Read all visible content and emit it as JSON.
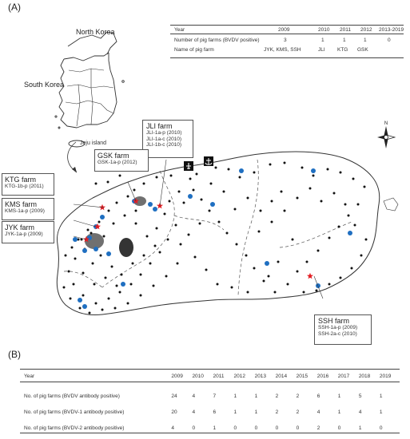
{
  "panel_a": {
    "label": "(A)",
    "map_labels": {
      "north_korea": "North Korea",
      "south_korea": "South Korea",
      "jeju_island": "Jeju island",
      "compass_n": "N"
    },
    "table": {
      "header": [
        "Year",
        "2009",
        "2010",
        "2011",
        "2012",
        "2013-2019"
      ],
      "rows": [
        {
          "label": "Number of pig farms (BVDV positive)",
          "values": [
            "3",
            "1",
            "1",
            "1",
            "0"
          ]
        },
        {
          "label": "Name of pig farm",
          "values": [
            "JYK, KMS, SSH",
            "JLI",
            "KTG",
            "GSK",
            ""
          ]
        }
      ]
    },
    "farms": [
      {
        "name": "JLI farm",
        "samples": [
          "JLI-1a-p (2010)",
          "JLI-1a-c (2010)",
          "JLI-1b-c (2010)"
        ]
      },
      {
        "name": "GSK farm",
        "samples": [
          "GSK-1a-p (2012)"
        ]
      },
      {
        "name": "KTG farm",
        "samples": [
          "KTG-1b-p (2011)"
        ]
      },
      {
        "name": "KMS farm",
        "samples": [
          "KMS-1a-p (2009)"
        ]
      },
      {
        "name": "JYK farm",
        "samples": [
          "JYK-1a-p (2009)"
        ]
      },
      {
        "name": "SSH farm",
        "samples": [
          "SSH-1a-p (2009)",
          "SSH-2a-c (2010)"
        ]
      }
    ],
    "colors": {
      "star": "#e31e24",
      "blue_dot": "#1f6fc1",
      "black_dot": "#111111"
    }
  },
  "panel_b": {
    "label": "(B)",
    "table": {
      "header": [
        "Year",
        "2009",
        "2010",
        "2011",
        "2012",
        "2013",
        "2014",
        "2015",
        "2016",
        "2017",
        "2018",
        "2019"
      ],
      "rows": [
        {
          "label": "No. of pig farms (BVDV antibody positive)",
          "values": [
            "24",
            "4",
            "7",
            "1",
            "1",
            "2",
            "2",
            "6",
            "1",
            "5",
            "1"
          ]
        },
        {
          "label": "No. of pig farms (BVDV-1 antibody positive)",
          "values": [
            "20",
            "4",
            "6",
            "1",
            "1",
            "2",
            "2",
            "4",
            "1",
            "4",
            "1"
          ]
        },
        {
          "label": "No. of pig farms (BVDV-2 antibody positive)",
          "values": [
            "4",
            "0",
            "1",
            "0",
            "0",
            "0",
            "0",
            "2",
            "0",
            "1",
            "0"
          ]
        }
      ]
    }
  }
}
